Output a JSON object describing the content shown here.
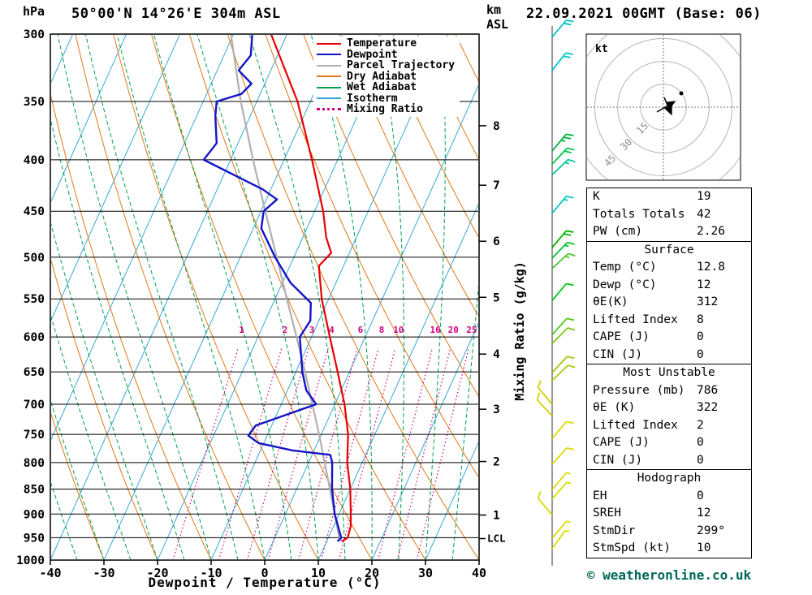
{
  "header": {
    "station": "50°00'N 14°26'E 304m ASL",
    "datetime": "22.09.2021 00GMT (Base: 06)"
  },
  "axes": {
    "pressure_unit": "hPa",
    "km_unit_line1": "km",
    "km_unit_line2": "ASL",
    "x_title": "Dewpoint / Temperature (°C)",
    "mixing_title": "Mixing Ratio (g/kg)",
    "lcl_label": "LCL"
  },
  "footer": {
    "copyright": "© weatheronline.co.uk"
  },
  "hodograph": {
    "unit": "kt",
    "ring_labels": [
      "15",
      "30",
      "45"
    ],
    "rings_kt": [
      15,
      30,
      45,
      60
    ]
  },
  "info_panel": {
    "boxes": [
      {
        "rows": [
          [
            "K",
            "19"
          ],
          [
            "Totals Totals",
            "42"
          ],
          [
            "PW (cm)",
            "2.26"
          ]
        ]
      },
      {
        "title": "Surface",
        "rows": [
          [
            "Temp (°C)",
            "12.8"
          ],
          [
            "Dewp (°C)",
            "12"
          ],
          [
            "θE(K)",
            "312"
          ],
          [
            "Lifted Index",
            "8"
          ],
          [
            "CAPE (J)",
            "0"
          ],
          [
            "CIN (J)",
            "0"
          ]
        ]
      },
      {
        "title": "Most Unstable",
        "rows": [
          [
            "Pressure (mb)",
            "786"
          ],
          [
            "θE (K)",
            "322"
          ],
          [
            "Lifted Index",
            "2"
          ],
          [
            "CAPE (J)",
            "0"
          ],
          [
            "CIN (J)",
            "0"
          ]
        ]
      },
      {
        "title": "Hodograph",
        "rows": [
          [
            "EH",
            "0"
          ],
          [
            "SREH",
            "12"
          ],
          [
            "StmDir",
            "299°"
          ],
          [
            "StmSpd (kt)",
            "10"
          ]
        ]
      }
    ]
  },
  "chart_data": {
    "type": "skewt-logp",
    "pressure_range": [
      300,
      1000
    ],
    "temp_range": [
      -40,
      40
    ],
    "pressure_ticks": [
      300,
      350,
      400,
      450,
      500,
      550,
      600,
      650,
      700,
      750,
      800,
      850,
      900,
      950,
      1000
    ],
    "temp_ticks": [
      -40,
      -30,
      -20,
      -10,
      0,
      10,
      20,
      30,
      40
    ],
    "km_levels": [
      {
        "label": "8",
        "p": 370
      },
      {
        "label": "7",
        "p": 424
      },
      {
        "label": "6",
        "p": 482
      },
      {
        "label": "5",
        "p": 548
      },
      {
        "label": "4",
        "p": 624
      },
      {
        "label": "3",
        "p": 708
      },
      {
        "label": "2",
        "p": 798
      },
      {
        "label": "1",
        "p": 902
      }
    ],
    "lcl_pressure": 952,
    "mixing_ratio_lines_gkg": [
      1,
      2,
      3,
      4,
      6,
      8,
      10,
      16,
      20,
      25
    ],
    "isotherm_step": 10,
    "dry_adiabat_step": 10,
    "wet_adiabat_step": 5,
    "series": {
      "temperature": [
        [
          958,
          12.8
        ],
        [
          950,
          13.6
        ],
        [
          925,
          13.2
        ],
        [
          900,
          12.2
        ],
        [
          850,
          10.0
        ],
        [
          800,
          7.2
        ],
        [
          786,
          6.6
        ],
        [
          750,
          5.0
        ],
        [
          700,
          1.8
        ],
        [
          650,
          -2.2
        ],
        [
          600,
          -6.6
        ],
        [
          550,
          -11.3
        ],
        [
          510,
          -14.6
        ],
        [
          495,
          -13.4
        ],
        [
          478,
          -15.6
        ],
        [
          450,
          -18.4
        ],
        [
          400,
          -24.8
        ],
        [
          350,
          -32.4
        ],
        [
          300,
          -43.0
        ]
      ],
      "dewpoint": [
        [
          958,
          12.0
        ],
        [
          950,
          12.4
        ],
        [
          925,
          10.8
        ],
        [
          900,
          9.2
        ],
        [
          850,
          6.6
        ],
        [
          800,
          4.4
        ],
        [
          786,
          3.4
        ],
        [
          778,
          -4.0
        ],
        [
          765,
          -11.0
        ],
        [
          752,
          -13.5
        ],
        [
          735,
          -13.0
        ],
        [
          700,
          -3.5
        ],
        [
          678,
          -6.5
        ],
        [
          650,
          -8.8
        ],
        [
          620,
          -10.8
        ],
        [
          600,
          -12.2
        ],
        [
          578,
          -11.6
        ],
        [
          555,
          -13.0
        ],
        [
          530,
          -18.5
        ],
        [
          500,
          -23.5
        ],
        [
          468,
          -28.5
        ],
        [
          450,
          -29.5
        ],
        [
          438,
          -28.0
        ],
        [
          428,
          -31.5
        ],
        [
          400,
          -45.0
        ],
        [
          385,
          -44.0
        ],
        [
          362,
          -46.5
        ],
        [
          350,
          -47.5
        ],
        [
          344,
          -43.5
        ],
        [
          336,
          -42.5
        ],
        [
          326,
          -46.0
        ],
        [
          315,
          -45.0
        ],
        [
          300,
          -46.5
        ]
      ],
      "parcel": [
        [
          958,
          12.8
        ],
        [
          948,
          11.9
        ],
        [
          900,
          9.2
        ],
        [
          850,
          6.2
        ],
        [
          800,
          3.0
        ],
        [
          750,
          -0.4
        ],
        [
          700,
          -4.2
        ],
        [
          650,
          -8.3
        ],
        [
          600,
          -12.8
        ],
        [
          550,
          -17.8
        ],
        [
          500,
          -23.2
        ],
        [
          450,
          -29.2
        ],
        [
          400,
          -35.8
        ],
        [
          350,
          -43.0
        ],
        [
          300,
          -50.5
        ]
      ]
    },
    "wind_barbs": [
      {
        "p": 302,
        "color": "#00c8c8",
        "angle": 40,
        "speed": 20
      },
      {
        "p": 326,
        "color": "#00c8c8",
        "angle": 38,
        "speed": 20
      },
      {
        "p": 392,
        "color": "#00b43c",
        "angle": 40,
        "speed": 25
      },
      {
        "p": 404,
        "color": "#00c850",
        "angle": 43,
        "speed": 20
      },
      {
        "p": 414,
        "color": "#00c896",
        "angle": 46,
        "speed": 15
      },
      {
        "p": 452,
        "color": "#00c8c8",
        "angle": 40,
        "speed": 15
      },
      {
        "p": 489,
        "color": "#00b400",
        "angle": 40,
        "speed": 20
      },
      {
        "p": 501,
        "color": "#00c832",
        "angle": 44,
        "speed": 15
      },
      {
        "p": 513,
        "color": "#50c832",
        "angle": 47,
        "speed": 15
      },
      {
        "p": 552,
        "color": "#00c814",
        "angle": 40,
        "speed": 10
      },
      {
        "p": 597,
        "color": "#50c814",
        "angle": 42,
        "speed": 10
      },
      {
        "p": 609,
        "color": "#78c814",
        "angle": 45,
        "speed": 10
      },
      {
        "p": 651,
        "color": "#a0c814",
        "angle": 43,
        "speed": 10
      },
      {
        "p": 663,
        "color": "#b4c814",
        "angle": 46,
        "speed": 10
      },
      {
        "p": 700,
        "color": "#d2d200",
        "angle": -40,
        "speed": 10
      },
      {
        "p": 719,
        "color": "#d2d200",
        "angle": -43,
        "speed": 10
      },
      {
        "p": 757,
        "color": "#dcdc00",
        "angle": 40,
        "speed": 10
      },
      {
        "p": 803,
        "color": "#dcdc00",
        "angle": 42,
        "speed": 10
      },
      {
        "p": 851,
        "color": "#dcdc00",
        "angle": 40,
        "speed": 5
      },
      {
        "p": 869,
        "color": "#dcdc00",
        "angle": 42,
        "speed": 5
      },
      {
        "p": 902,
        "color": "#dcdc00",
        "angle": -40,
        "speed": 10
      },
      {
        "p": 951,
        "color": "#dcdc00",
        "angle": 40,
        "speed": 5
      },
      {
        "p": 974,
        "color": "#dcdc00",
        "angle": 36,
        "speed": 5
      }
    ],
    "legend": [
      {
        "label": "Temperature",
        "color": "#e60000",
        "style": "solid"
      },
      {
        "label": "Dewpoint",
        "color": "#1414c8",
        "style": "solid"
      },
      {
        "label": "Parcel Trajectory",
        "color": "#b0b0b0",
        "style": "solid"
      },
      {
        "label": "Dry Adiabat",
        "color": "#e07818",
        "style": "solid"
      },
      {
        "label": "Wet Adiabat",
        "color": "#00a050",
        "style": "solid"
      },
      {
        "label": "Isotherm",
        "color": "#38a8d8",
        "style": "solid"
      },
      {
        "label": "Mixing Ratio",
        "color": "#d20082",
        "style": "dotted"
      }
    ],
    "colors": {
      "temperature": "#e60000",
      "dewpoint": "#1414c8",
      "parcel": "#b0b0b0",
      "dry_adiabat": "#e07818",
      "wet_adiabat": "#00a050",
      "isotherm": "#38a8d8",
      "mixing_ratio": "#d20082",
      "isobar": "#000000",
      "frame": "#000000",
      "barb_column": "#303030"
    }
  }
}
